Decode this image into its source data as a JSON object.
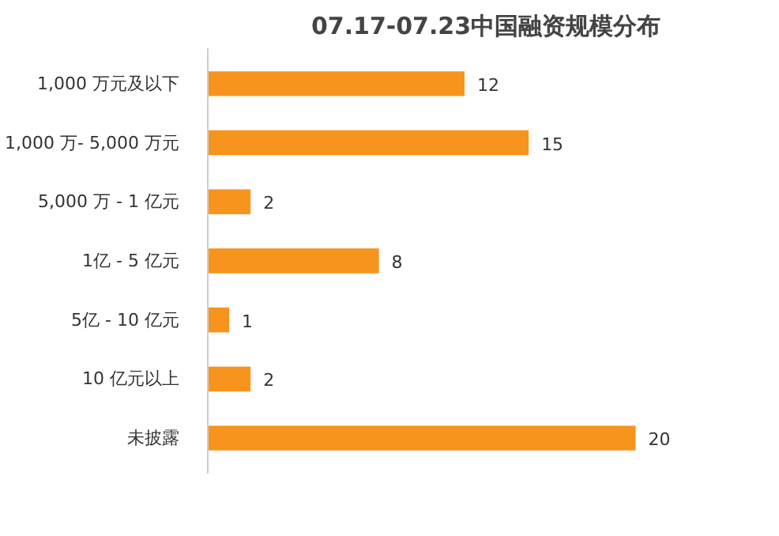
{
  "chart_data": {
    "type": "bar",
    "orientation": "horizontal",
    "title": "07.17-07.23中国融资规模分布",
    "categories": [
      "1,000 万元及以下",
      "1,000 万- 5,000 万元",
      "5,000 万 - 1 亿元",
      "1亿 - 5 亿元",
      "5亿 - 10 亿元",
      "10 亿元以上",
      "未披露"
    ],
    "values": [
      12,
      15,
      2,
      8,
      1,
      2,
      20
    ],
    "color": "#f7941d",
    "data_labels": true
  }
}
